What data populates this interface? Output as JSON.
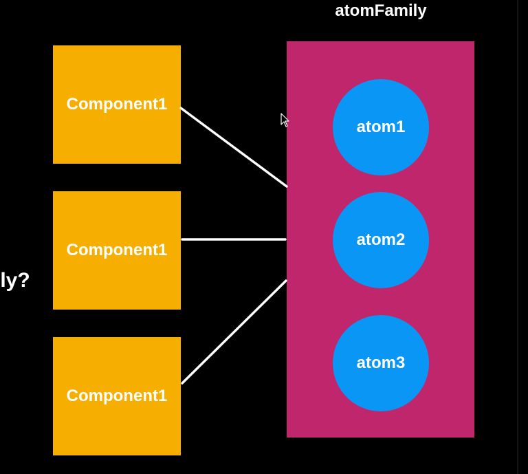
{
  "diagram": {
    "title": "atomFamily",
    "side_text": "lly?",
    "atoms": [
      {
        "label": "atom1"
      },
      {
        "label": "atom2"
      },
      {
        "label": "atom3"
      }
    ],
    "components": [
      {
        "label": "Component1"
      },
      {
        "label": "Component1"
      },
      {
        "label": "Component1"
      }
    ],
    "colors": {
      "background": "#000000",
      "family_box": "#c0266c",
      "atom": "#0a96f5",
      "component": "#f6ae00",
      "text": "#ffffff",
      "connector": "#ffffff"
    },
    "icons": {
      "cursor": "mouse-pointer-icon"
    }
  }
}
